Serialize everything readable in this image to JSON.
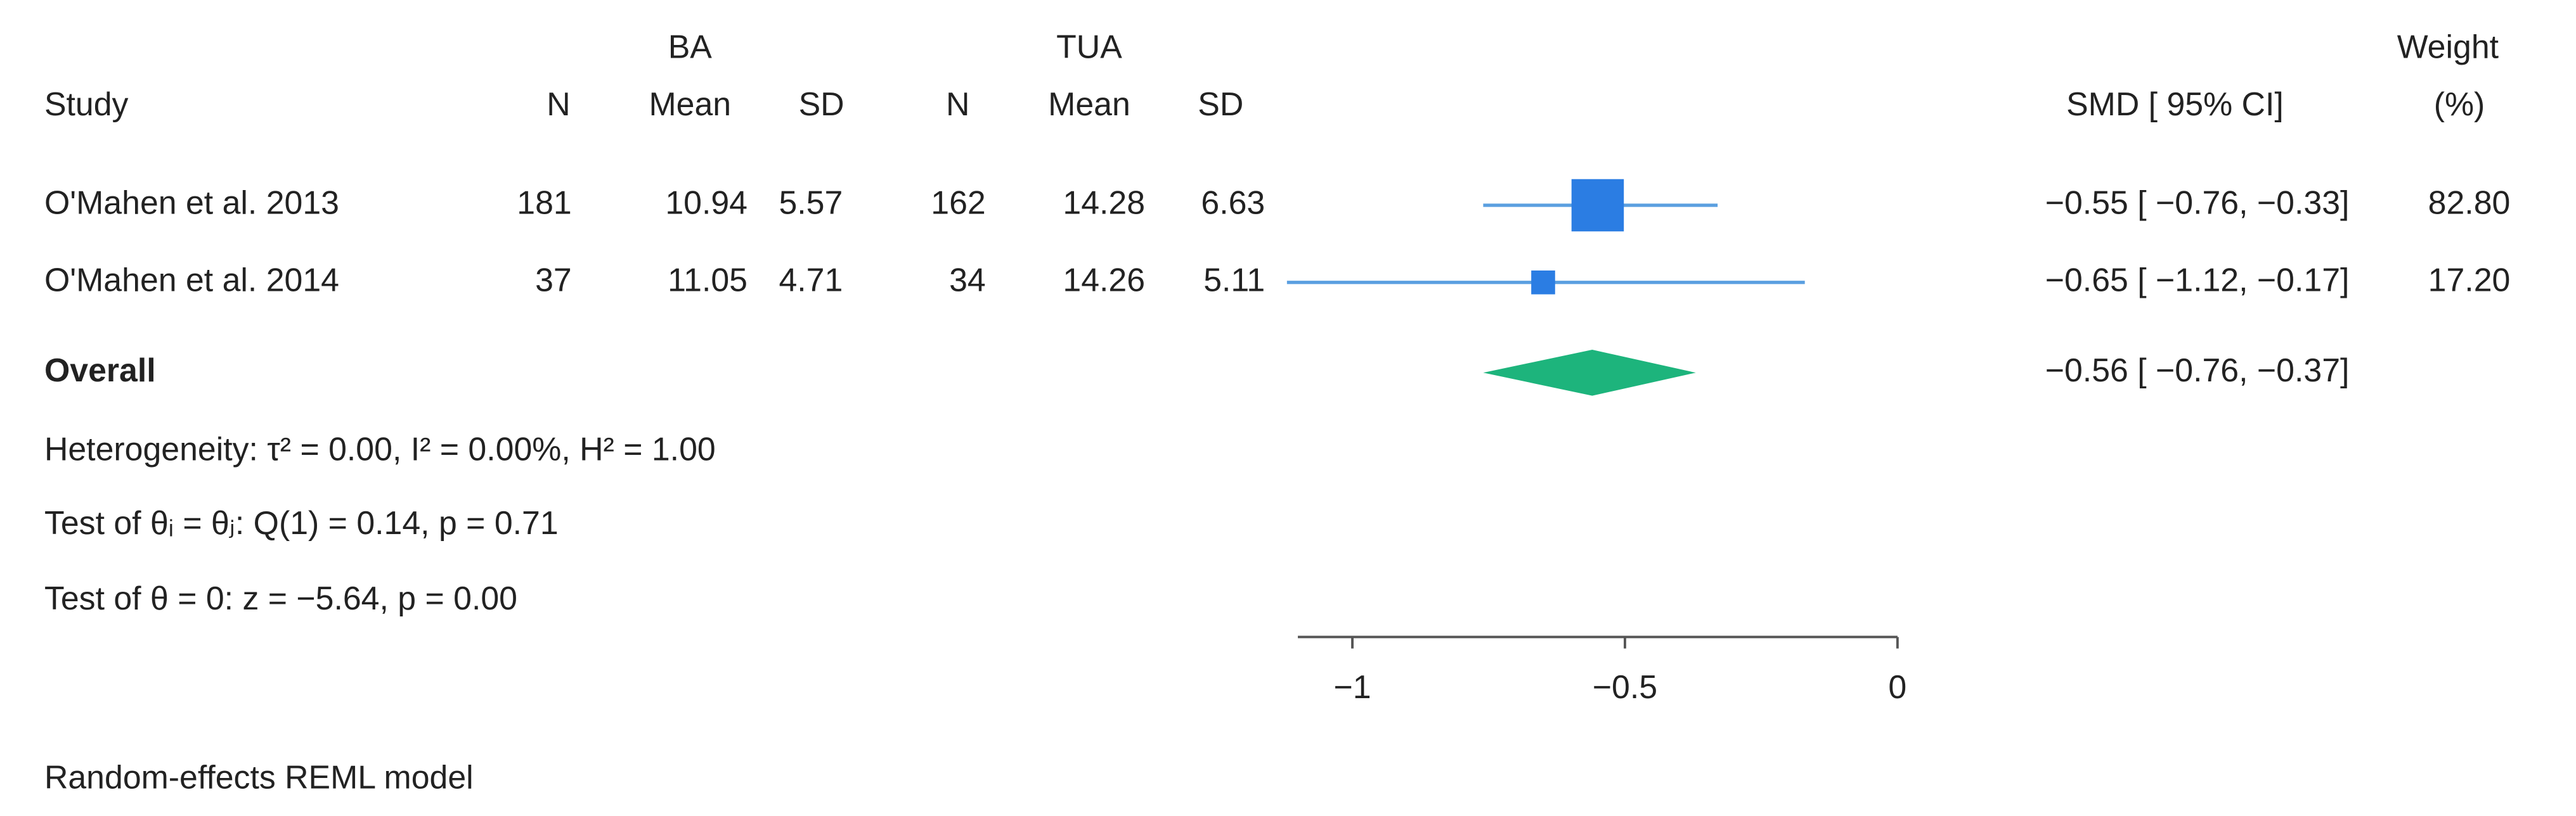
{
  "chart_data": {
    "type": "forest",
    "headers": {
      "study": "Study",
      "group1": "BA",
      "group2": "TUA",
      "n": "N",
      "mean": "Mean",
      "sd": "SD",
      "effect": "SMD [ 95% CI]",
      "weight": "Weight",
      "weight_unit": "(%)"
    },
    "studies": [
      {
        "name": "O'Mahen et al. 2013",
        "n1": 181,
        "mean1": 10.94,
        "sd1": 5.57,
        "n2": 162,
        "mean2": 14.28,
        "sd2": 6.63,
        "smd": -0.55,
        "ci": [
          -0.76,
          -0.33
        ],
        "effect_label": "−0.55 [ −0.76, −0.33]",
        "weight": 82.8,
        "weight_label": "82.80"
      },
      {
        "name": "O'Mahen et al. 2014",
        "n1": 37,
        "mean1": 11.05,
        "sd1": 4.71,
        "n2": 34,
        "mean2": 14.26,
        "sd2": 5.11,
        "smd": -0.65,
        "ci": [
          -1.12,
          -0.17
        ],
        "effect_label": "−0.65 [ −1.12, −0.17]",
        "weight": 17.2,
        "weight_label": "17.20"
      }
    ],
    "overall": {
      "label": "Overall",
      "smd": -0.56,
      "ci": [
        -0.76,
        -0.37
      ],
      "effect_label": "−0.56 [ −0.76, −0.37]"
    },
    "notes": [
      "Heterogeneity: τ² = 0.00, I² = 0.00%, H² = 1.00",
      "Test of θᵢ = θⱼ: Q(1) = 0.14, p = 0.71",
      "Test of θ = 0: z = −5.64, p = 0.00"
    ],
    "footnote": "Random-effects REML model",
    "xlim": [
      -1.1,
      0
    ],
    "xticks": [
      {
        "value": -1,
        "label": "−1"
      },
      {
        "value": -0.5,
        "label": "−0.5"
      },
      0
    ],
    "marker_color": "#2b7de3",
    "ci_color": "#5a9fe0",
    "overall_color": "#1db47c"
  }
}
